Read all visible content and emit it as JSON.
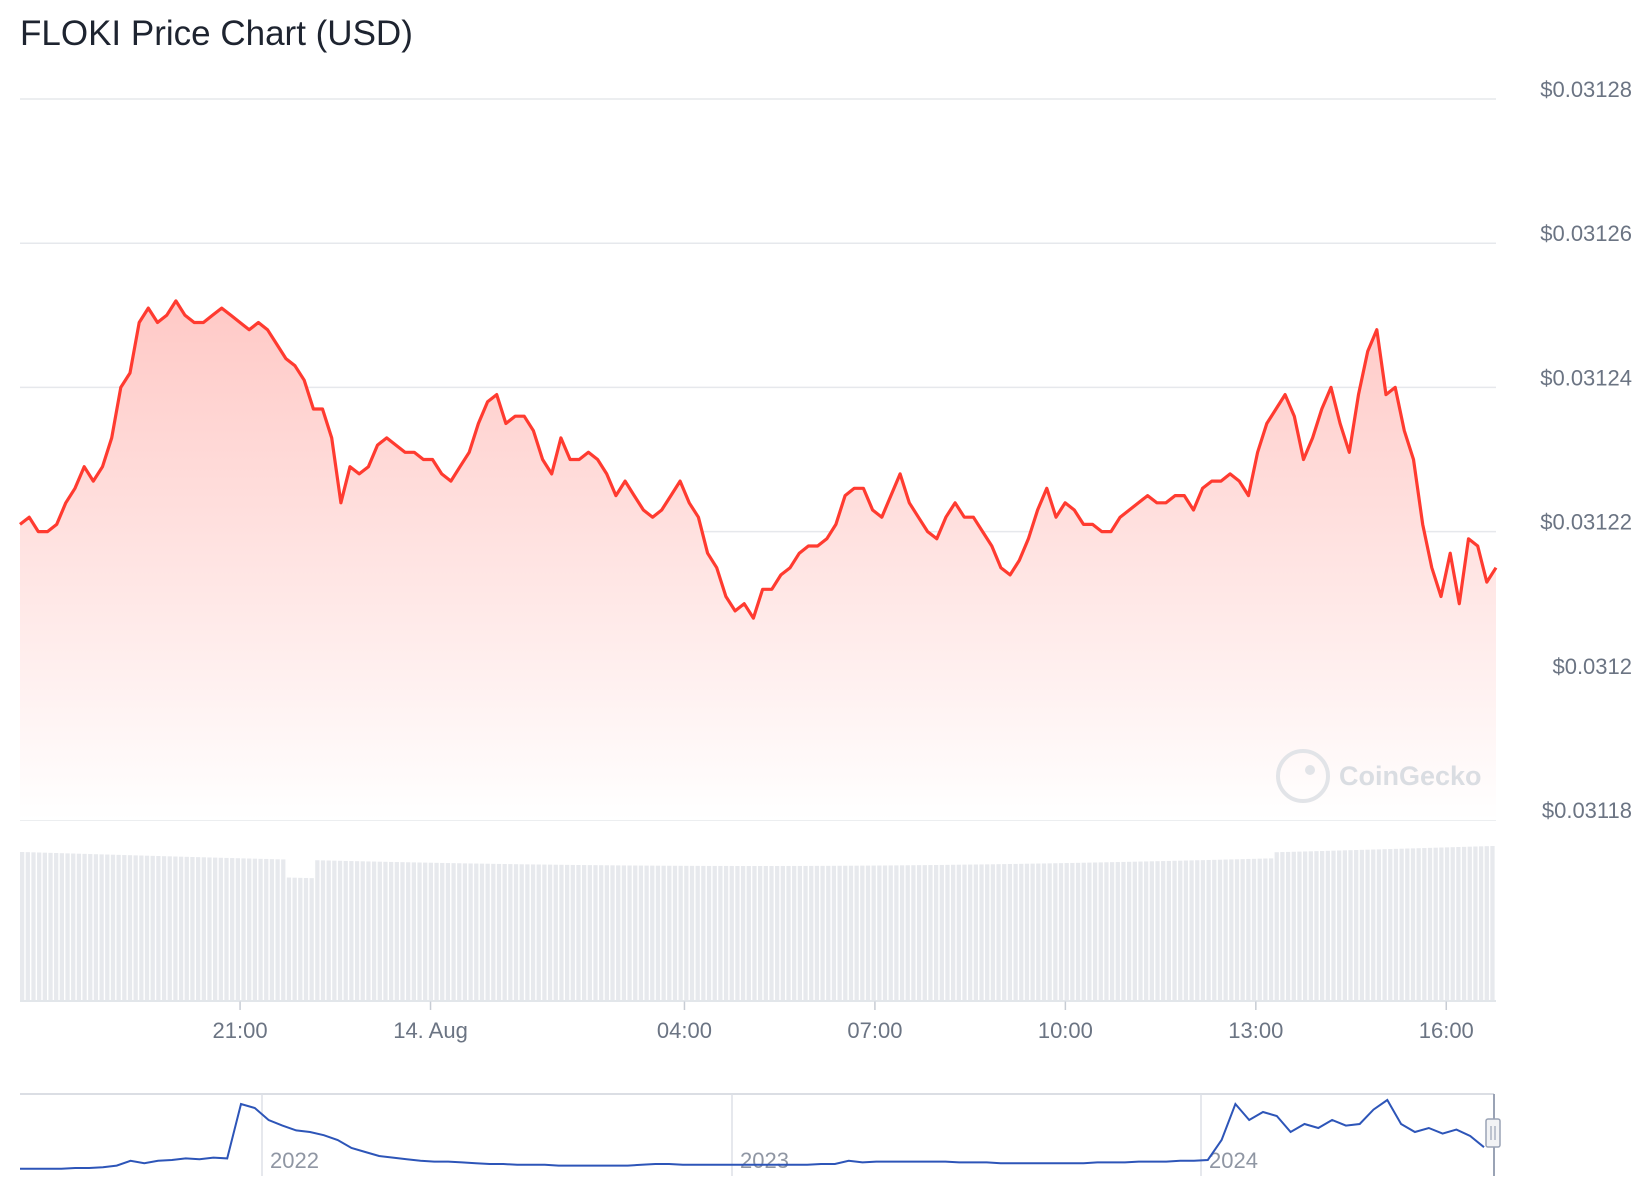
{
  "title": "FLOKI Price Chart (USD)",
  "watermark": "CoinGecko",
  "colors": {
    "line": "#ff3b30",
    "fill_top": "#ffc9c6",
    "fill_bottom": "#ffffff",
    "grid": "#e6e8ec",
    "volume": "#e7e9ed",
    "navigator_line": "#2d55b8",
    "tick_text": "#6b7483"
  },
  "chart_data": [
    {
      "type": "area",
      "title": "FLOKI Price Chart (USD)",
      "xlabel": "",
      "ylabel": "",
      "ylim": [
        0.03118,
        0.03128
      ],
      "y_tick_labels": [
        "$0.03128",
        "$0.03126",
        "$0.03124",
        "$0.03122",
        "$0.0312",
        "$0.03118"
      ],
      "y_tick_values": [
        0.03128,
        0.03126,
        0.03124,
        0.03122,
        0.0312,
        0.03118
      ],
      "xlim": [
        "13 Aug 17:32",
        "14 Aug 16:47"
      ],
      "x_tick_labels": [
        "21:00",
        "14. Aug",
        "04:00",
        "07:00",
        "10:00",
        "13:00",
        "16:00"
      ],
      "x_tick_values": [
        "13 Aug 21:00",
        "14 Aug 00:00",
        "14 Aug 04:00",
        "14 Aug 07:00",
        "14 Aug 10:00",
        "14 Aug 13:00",
        "14 Aug 16:00"
      ],
      "grid": true,
      "legend": "none",
      "series": [
        {
          "values": [
            0.031221,
            0.031222,
            0.03122,
            0.03122,
            0.031221,
            0.031224,
            0.031226,
            0.031229,
            0.031227,
            0.031229,
            0.031233,
            0.03124,
            0.031242,
            0.031249,
            0.031251,
            0.031249,
            0.03125,
            0.031252,
            0.03125,
            0.031249,
            0.031249,
            0.03125,
            0.031251,
            0.03125,
            0.031249,
            0.031248,
            0.031249,
            0.031248,
            0.031246,
            0.031244,
            0.031243,
            0.031241,
            0.031237,
            0.031237,
            0.031233,
            0.031224,
            0.031229,
            0.031228,
            0.031229,
            0.031232,
            0.031233,
            0.031232,
            0.031231,
            0.031231,
            0.03123,
            0.03123,
            0.031228,
            0.031227,
            0.031229,
            0.031231,
            0.031235,
            0.031238,
            0.031239,
            0.031235,
            0.031236,
            0.031236,
            0.031234,
            0.03123,
            0.031228,
            0.031233,
            0.03123,
            0.03123,
            0.031231,
            0.03123,
            0.031228,
            0.031225,
            0.031227,
            0.031225,
            0.031223,
            0.031222,
            0.031223,
            0.031225,
            0.031227,
            0.031224,
            0.031222,
            0.031217,
            0.031215,
            0.031211,
            0.031209,
            0.03121,
            0.031208,
            0.031212,
            0.031212,
            0.031214,
            0.031215,
            0.031217,
            0.031218,
            0.031218,
            0.031219,
            0.031221,
            0.031225,
            0.031226,
            0.031226,
            0.031223,
            0.031222,
            0.031225,
            0.031228,
            0.031224,
            0.031222,
            0.03122,
            0.031219,
            0.031222,
            0.031224,
            0.031222,
            0.031222,
            0.03122,
            0.031218,
            0.031215,
            0.031214,
            0.031216,
            0.031219,
            0.031223,
            0.031226,
            0.031222,
            0.031224,
            0.031223,
            0.031221,
            0.031221,
            0.03122,
            0.03122,
            0.031222,
            0.031223,
            0.031224,
            0.031225,
            0.031224,
            0.031224,
            0.031225,
            0.031225,
            0.031223,
            0.031226,
            0.031227,
            0.031227,
            0.031228,
            0.031227,
            0.031225,
            0.031231,
            0.031235,
            0.031237,
            0.031239,
            0.031236,
            0.03123,
            0.031233,
            0.031237,
            0.03124,
            0.031235,
            0.031231,
            0.031239,
            0.031245,
            0.031248,
            0.031239,
            0.03124,
            0.031234,
            0.03123,
            0.031221,
            0.031215,
            0.031211,
            0.031217,
            0.03121,
            0.031219,
            0.031218,
            0.031213,
            0.031215
          ]
        }
      ]
    },
    {
      "type": "line",
      "title": "",
      "xlabel": "",
      "ylabel": "",
      "x_tick_labels": [
        "2022",
        "2023",
        "2024"
      ],
      "grid": true,
      "legend": "none",
      "series": [
        {
          "values": [
            0.004,
            0.004,
            0.004,
            0.004,
            0.005,
            0.005,
            0.006,
            0.008,
            0.014,
            0.011,
            0.014,
            0.015,
            0.017,
            0.016,
            0.018,
            0.017,
            0.085,
            0.08,
            0.065,
            0.058,
            0.052,
            0.05,
            0.046,
            0.04,
            0.03,
            0.025,
            0.02,
            0.018,
            0.016,
            0.014,
            0.013,
            0.013,
            0.012,
            0.011,
            0.01,
            0.01,
            0.009,
            0.009,
            0.009,
            0.008,
            0.008,
            0.008,
            0.008,
            0.008,
            0.008,
            0.009,
            0.01,
            0.01,
            0.009,
            0.009,
            0.009,
            0.009,
            0.009,
            0.009,
            0.009,
            0.009,
            0.009,
            0.009,
            0.01,
            0.01,
            0.014,
            0.012,
            0.013,
            0.013,
            0.013,
            0.013,
            0.013,
            0.013,
            0.012,
            0.012,
            0.012,
            0.011,
            0.011,
            0.011,
            0.011,
            0.011,
            0.011,
            0.011,
            0.012,
            0.012,
            0.012,
            0.013,
            0.013,
            0.013,
            0.014,
            0.014,
            0.015,
            0.04,
            0.085,
            0.065,
            0.075,
            0.07,
            0.05,
            0.06,
            0.055,
            0.065,
            0.058,
            0.06,
            0.078,
            0.09,
            0.06,
            0.05,
            0.055,
            0.048,
            0.053,
            0.045,
            0.031
          ]
        }
      ]
    }
  ]
}
